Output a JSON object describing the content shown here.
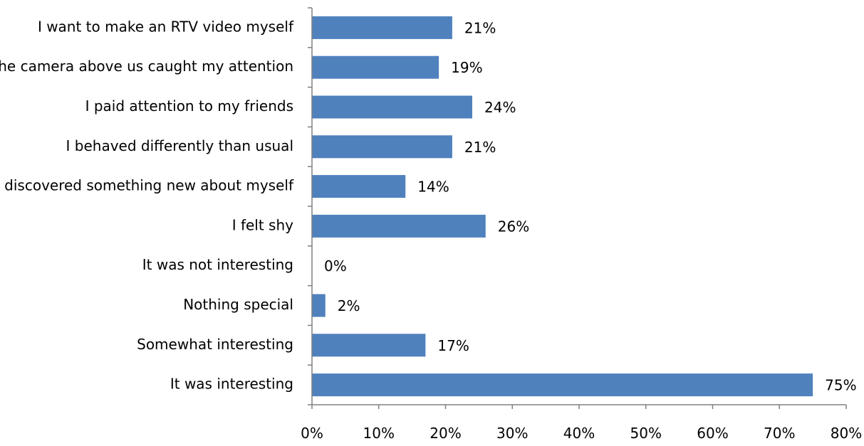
{
  "chart_data": {
    "type": "bar",
    "orientation": "horizontal",
    "categories": [
      "I want to make an RTV video myself",
      "The camera above us caught my attention",
      "I paid attention to my friends",
      "I behaved differently than usual",
      "I discovered something new about myself",
      "I felt shy",
      "It was not interesting",
      "Nothing special",
      "Somewhat interesting",
      "It was interesting"
    ],
    "values": [
      21,
      19,
      24,
      21,
      14,
      26,
      0,
      2,
      17,
      75
    ],
    "value_labels": [
      "21%",
      "19%",
      "24%",
      "21%",
      "14%",
      "26%",
      "0%",
      "2%",
      "17%",
      "75%"
    ],
    "x_ticks": [
      0,
      10,
      20,
      30,
      40,
      50,
      60,
      70,
      80
    ],
    "x_tick_labels": [
      "0%",
      "10%",
      "20%",
      "30%",
      "40%",
      "50%",
      "60%",
      "70%",
      "80%"
    ],
    "xlim": [
      0,
      80
    ],
    "title": "",
    "xlabel": "",
    "ylabel": "",
    "grid": false,
    "legend": "none",
    "bar_color": "#4F81BD"
  }
}
